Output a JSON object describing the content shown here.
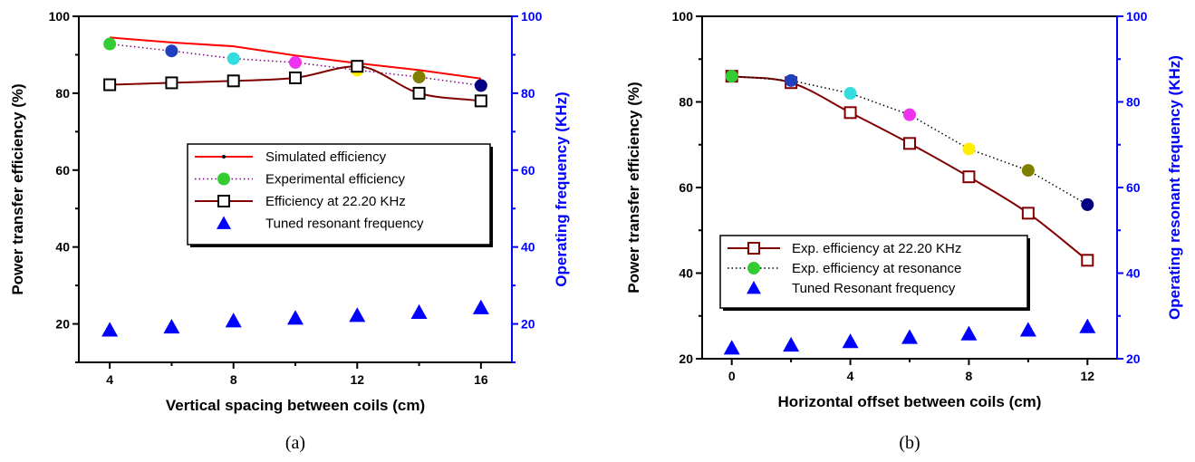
{
  "chart_data": [
    {
      "type": "line",
      "caption": "(a)",
      "xlabel": "Vertical spacing between coils (cm)",
      "ylabel": "Power transfer efficiency (%)",
      "y2label": "Operating frequency (KHz)",
      "xlim": [
        3,
        17
      ],
      "ylim": [
        10,
        100
      ],
      "y2lim": [
        10,
        100
      ],
      "xticks": [
        4,
        8,
        12,
        16
      ],
      "yticks": [
        20,
        40,
        60,
        80,
        100
      ],
      "y2ticks": [
        20,
        40,
        60,
        80,
        100
      ],
      "legend_position": "center-right",
      "series": [
        {
          "name": "Simulated efficiency",
          "axis": "left",
          "style": "solid-dot",
          "color": "#ff0000",
          "x": [
            4,
            6,
            8,
            10,
            12,
            14,
            16
          ],
          "values": [
            94.5,
            93.2,
            92.2,
            89.8,
            87.8,
            86.0,
            83.8
          ]
        },
        {
          "name": "Experimental efficiency",
          "axis": "left",
          "style": "dotted-circles",
          "color": "#800080",
          "x": [
            4,
            6,
            8,
            10,
            12,
            14,
            16
          ],
          "values": [
            92.8,
            91.0,
            89.0,
            88.0,
            86.0,
            84.2,
            82.0
          ],
          "marker_colors": [
            "#33cc33",
            "#1f3fbf",
            "#33dddd",
            "#ee33ee",
            "#ffee00",
            "#808000",
            "#000080"
          ]
        },
        {
          "name": "Efficiency at 22.20 KHz",
          "axis": "left",
          "style": "curve-squares",
          "color": "#800000",
          "x": [
            4,
            6,
            8,
            10,
            12,
            14,
            16
          ],
          "values": [
            82.2,
            82.7,
            83.2,
            84.0,
            87.0,
            80.0,
            78.0
          ]
        },
        {
          "name": "Tuned resonant frequency",
          "axis": "right",
          "style": "triangles",
          "color": "#0000ff",
          "x": [
            4,
            6,
            8,
            10,
            12,
            14,
            16
          ],
          "values": [
            18.4,
            19.2,
            20.8,
            21.5,
            22.2,
            23.0,
            24.2
          ]
        }
      ]
    },
    {
      "type": "line",
      "caption": "(b)",
      "xlabel": "Horizontal offset between coils (cm)",
      "ylabel": "Power transfer efficiency (%)",
      "y2label": "Operating resonant frequency (KHz)",
      "xlim": [
        -1,
        13
      ],
      "ylim": [
        20,
        100
      ],
      "y2lim": [
        20,
        100
      ],
      "xticks": [
        0,
        4,
        8,
        12
      ],
      "yticks": [
        20,
        40,
        60,
        80,
        100
      ],
      "y2ticks": [
        20,
        40,
        60,
        80,
        100
      ],
      "legend_position": "lower-left",
      "series": [
        {
          "name": "Exp. efficiency at 22.20 KHz",
          "axis": "left",
          "style": "curve-squares",
          "color": "#800000",
          "x": [
            0,
            2,
            4,
            6,
            8,
            10,
            12
          ],
          "values": [
            86.0,
            84.5,
            77.5,
            70.3,
            62.5,
            54.0,
            43.0
          ]
        },
        {
          "name": "Exp. efficiency at resonance",
          "axis": "left",
          "style": "dotted-circles",
          "color": "#000000",
          "x": [
            0,
            2,
            4,
            6,
            8,
            10,
            12
          ],
          "values": [
            86.0,
            85.0,
            82.0,
            77.0,
            69.0,
            64.0,
            56.0
          ],
          "marker_colors": [
            "#33cc33",
            "#1f3fbf",
            "#33dddd",
            "#ee33ee",
            "#ffee00",
            "#808000",
            "#000080"
          ]
        },
        {
          "name": "Tuned Resonant frequency",
          "axis": "right",
          "style": "triangles",
          "color": "#0000ff",
          "x": [
            0,
            2,
            4,
            6,
            8,
            10,
            12
          ],
          "values": [
            22.5,
            23.2,
            24.0,
            25.0,
            25.8,
            26.7,
            27.5
          ]
        }
      ]
    }
  ],
  "colors": {
    "axis": "#000000",
    "right_axis": "#0000ff"
  }
}
